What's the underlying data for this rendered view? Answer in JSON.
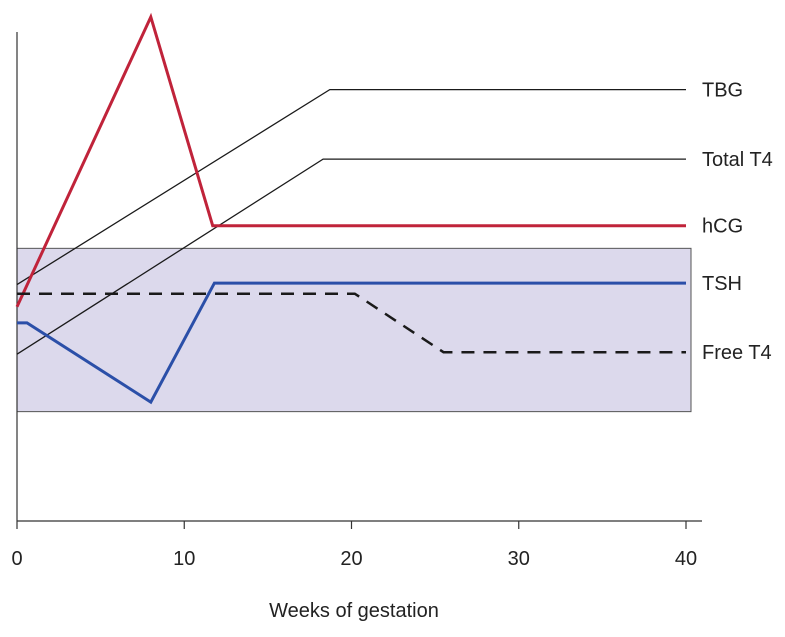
{
  "chart_data": {
    "type": "line",
    "title": "",
    "xlabel": "Weeks of gestation",
    "ylabel": "",
    "xlim": [
      0,
      40
    ],
    "ylim": [
      0,
      100
    ],
    "x_ticks": [
      0,
      10,
      20,
      30,
      40
    ],
    "x_tick_labels": [
      "0",
      "10",
      "20",
      "30",
      "40"
    ],
    "grid": false,
    "legend": "none",
    "band": {
      "y_low": 21.7,
      "y_high": 54.1,
      "color": "#dcd9ec"
    },
    "series": [
      {
        "name": "TBG",
        "color": "#1a1a1a",
        "style": "solid",
        "width": 1.3,
        "points": [
          [
            0,
            46.9
          ],
          [
            18.7,
            85.6
          ],
          [
            40,
            85.6
          ]
        ]
      },
      {
        "name": "Total T4",
        "color": "#1a1a1a",
        "style": "solid",
        "width": 1.3,
        "points": [
          [
            0,
            33.1
          ],
          [
            18.3,
            71.8
          ],
          [
            40,
            71.8
          ]
        ]
      },
      {
        "name": "hCG",
        "color": "#c0233a",
        "style": "solid",
        "width": 3,
        "points": [
          [
            0,
            42.5
          ],
          [
            8,
            100
          ],
          [
            11.7,
            58.6
          ],
          [
            40,
            58.6
          ]
        ]
      },
      {
        "name": "TSH",
        "color": "#2b4fa8",
        "style": "solid",
        "width": 3,
        "points": [
          [
            0,
            39.3
          ],
          [
            0.6,
            39.3
          ],
          [
            8,
            23.6
          ],
          [
            11.8,
            47.2
          ],
          [
            40,
            47.2
          ]
        ]
      },
      {
        "name": "Free T4",
        "color": "#1a1a1a",
        "style": "dashed",
        "width": 2.5,
        "points": [
          [
            0,
            45.1
          ],
          [
            20.2,
            45.1
          ],
          [
            25.5,
            33.5
          ],
          [
            40,
            33.5
          ]
        ]
      }
    ]
  }
}
